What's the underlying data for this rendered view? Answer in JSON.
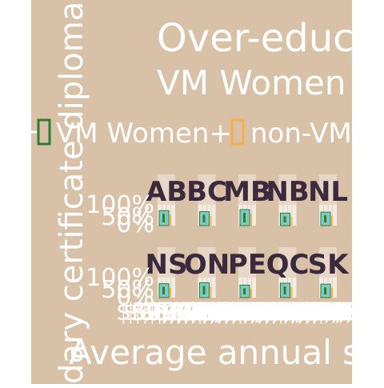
{
  "chart_data": {
    "type": "bar",
    "title": "Over-educ",
    "subtitle": "VM Women",
    "xlabel": "Average annual sa",
    "ylabel": "dary certificate diploma",
    "legend": {
      "placement": "top",
      "items": [
        {
          "label": "VM Women+",
          "color": "#2e7d32"
        },
        {
          "label": "non-VM",
          "color": "#f5b04a"
        }
      ]
    },
    "panels": [
      {
        "code": "AB",
        "series": [
          {
            "name": "VM Women+",
            "value": 0.3
          },
          {
            "name": "non-VM",
            "value": 0.22
          }
        ]
      },
      {
        "code": "BC",
        "series": [
          {
            "name": "VM Women+",
            "value": 0.28
          },
          {
            "name": "non-VM",
            "value": 0.2
          }
        ]
      },
      {
        "code": "MB",
        "series": [
          {
            "name": "VM Women+",
            "value": 0.32
          },
          {
            "name": "non-VM",
            "value": 0.24
          }
        ]
      },
      {
        "code": "NB",
        "series": [
          {
            "name": "VM Women+",
            "value": 0.25
          },
          {
            "name": "non-VM",
            "value": 0.18
          }
        ]
      },
      {
        "code": "NL",
        "series": [
          {
            "name": "VM Women+",
            "value": 0.27
          },
          {
            "name": "non-VM",
            "value": 0.2
          }
        ]
      },
      {
        "code": "NS",
        "series": [
          {
            "name": "VM Women+",
            "value": 0.29
          },
          {
            "name": "non-VM",
            "value": 0.21
          }
        ]
      },
      {
        "code": "ON",
        "series": [
          {
            "name": "VM Women+",
            "value": 0.31
          },
          {
            "name": "non-VM",
            "value": 0.23
          }
        ]
      },
      {
        "code": "PE",
        "series": [
          {
            "name": "VM Women+",
            "value": 0.26
          },
          {
            "name": "non-VM",
            "value": 0.19
          }
        ]
      },
      {
        "code": "QC",
        "series": [
          {
            "name": "VM Women+",
            "value": 0.3
          },
          {
            "name": "non-VM",
            "value": 0.22
          }
        ]
      },
      {
        "code": "SK",
        "series": [
          {
            "name": "VM Women+",
            "value": 0.28
          },
          {
            "name": "non-VM",
            "value": 0.21
          }
        ]
      }
    ],
    "y_ticks": [
      "100%",
      "50%",
      "0%"
    ],
    "x_ticks": [
      "$50,000",
      "$60,000",
      "$70,000",
      "$80,000",
      "$90,000",
      "$100,000"
    ],
    "ylim": [
      0,
      1
    ],
    "colors": {
      "background": "#d9c1a8",
      "panel_top": "#e8d6c6",
      "panel_bottom": "#f3ece4",
      "bar": "#7fc9c2",
      "bar_outline": "#2e7d32",
      "bar_alt": "#f5b04a",
      "code_text": "#3b2a3e",
      "text": "#ffffff",
      "grid": "#d2b48c"
    }
  }
}
